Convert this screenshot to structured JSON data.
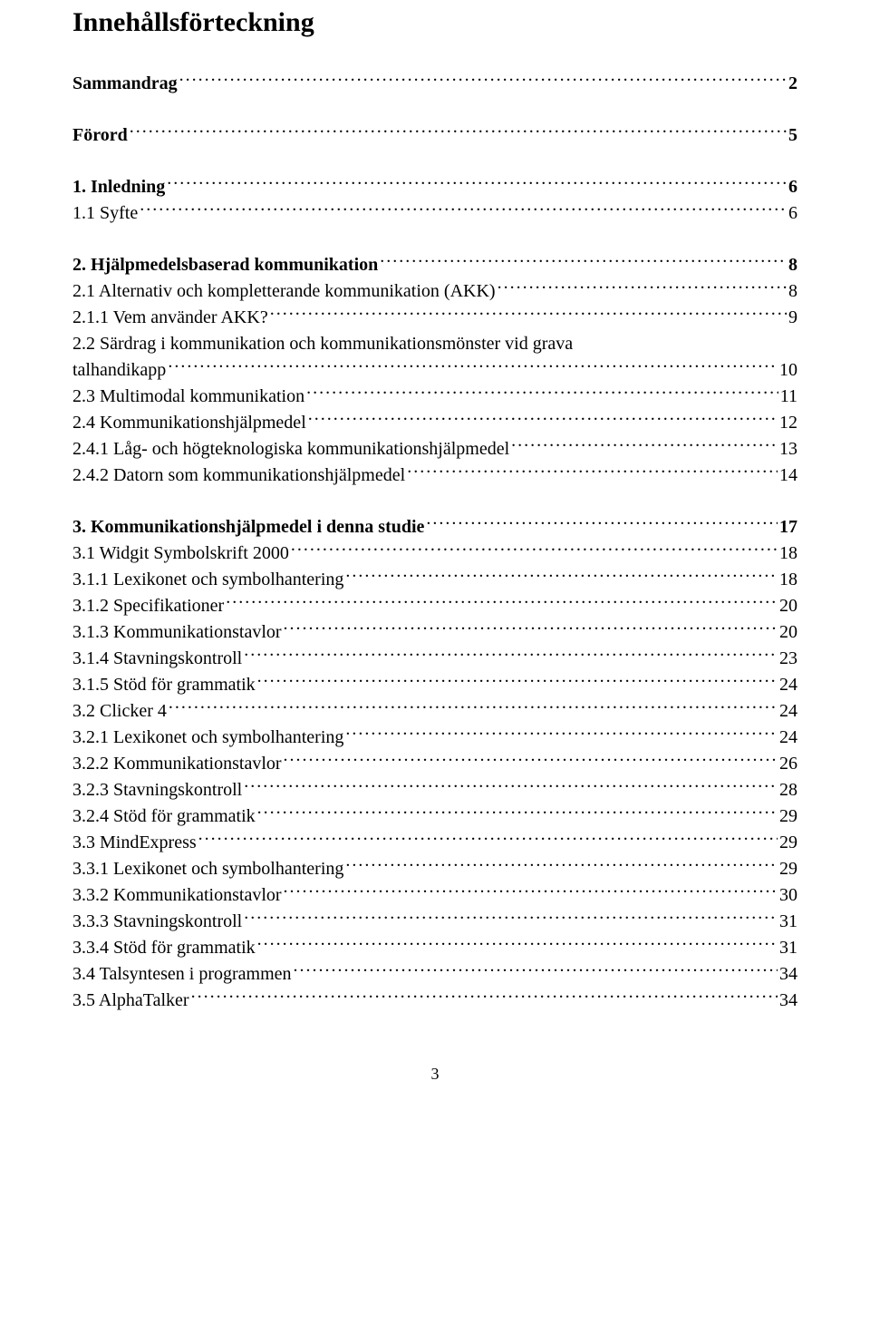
{
  "title": "Innehållsförteckning",
  "page_number": "3",
  "groups": [
    [
      {
        "label": "Sammandrag",
        "page": "2",
        "bold": true
      }
    ],
    [
      {
        "label": "Förord",
        "page": "5",
        "bold": true
      }
    ],
    [
      {
        "label": "1. Inledning",
        "page": "6",
        "bold": true
      },
      {
        "label": "1.1 Syfte",
        "page": "6",
        "bold": false
      }
    ],
    [
      {
        "label": "2. Hjälpmedelsbaserad kommunikation",
        "page": "8",
        "bold": true
      },
      {
        "label": "2.1 Alternativ och kompletterande kommunikation (AKK)",
        "page": "8",
        "bold": false
      },
      {
        "label": "2.1.1 Vem använder AKK?",
        "page": "9",
        "bold": false
      },
      {
        "label": "2.2 Särdrag i kommunikation och kommunikationsmönster vid grava",
        "page": "",
        "bold": false,
        "no_leader": true
      },
      {
        "label": "talhandikapp",
        "page": "10",
        "bold": false
      },
      {
        "label": "2.3 Multimodal kommunikation",
        "page": "11",
        "bold": false
      },
      {
        "label": "2.4 Kommunikationshjälpmedel",
        "page": "12",
        "bold": false
      },
      {
        "label": "2.4.1 Låg- och högteknologiska kommunikationshjälpmedel",
        "page": "13",
        "bold": false
      },
      {
        "label": "2.4.2 Datorn som kommunikationshjälpmedel",
        "page": "14",
        "bold": false
      }
    ],
    [
      {
        "label": "3. Kommunikationshjälpmedel i denna studie",
        "page": "17",
        "bold": true
      },
      {
        "label": "3.1 Widgit Symbolskrift 2000",
        "page": "18",
        "bold": false
      },
      {
        "label": "3.1.1 Lexikonet och symbolhantering",
        "page": "18",
        "bold": false
      },
      {
        "label": "3.1.2 Specifikationer",
        "page": "20",
        "bold": false
      },
      {
        "label": "3.1.3 Kommunikationstavlor",
        "page": "20",
        "bold": false
      },
      {
        "label": "3.1.4 Stavningskontroll",
        "page": "23",
        "bold": false
      },
      {
        "label": "3.1.5 Stöd för grammatik",
        "page": "24",
        "bold": false
      },
      {
        "label": "3.2 Clicker 4",
        "page": "24",
        "bold": false
      },
      {
        "label": "3.2.1 Lexikonet och symbolhantering",
        "page": "24",
        "bold": false
      },
      {
        "label": "3.2.2 Kommunikationstavlor",
        "page": "26",
        "bold": false
      },
      {
        "label": "3.2.3 Stavningskontroll",
        "page": "28",
        "bold": false
      },
      {
        "label": "3.2.4 Stöd för grammatik",
        "page": "29",
        "bold": false
      },
      {
        "label": "3.3 MindExpress",
        "page": "29",
        "bold": false
      },
      {
        "label": "3.3.1 Lexikonet och symbolhantering",
        "page": "29",
        "bold": false
      },
      {
        "label": "3.3.2 Kommunikationstavlor",
        "page": "30",
        "bold": false
      },
      {
        "label": "3.3.3 Stavningskontroll",
        "page": "31",
        "bold": false
      },
      {
        "label": "3.3.4 Stöd för grammatik",
        "page": "31",
        "bold": false
      },
      {
        "label": "3.4 Talsyntesen i programmen",
        "page": "34",
        "bold": false
      },
      {
        "label": "3.5 AlphaTalker",
        "page": "34",
        "bold": false
      }
    ]
  ]
}
